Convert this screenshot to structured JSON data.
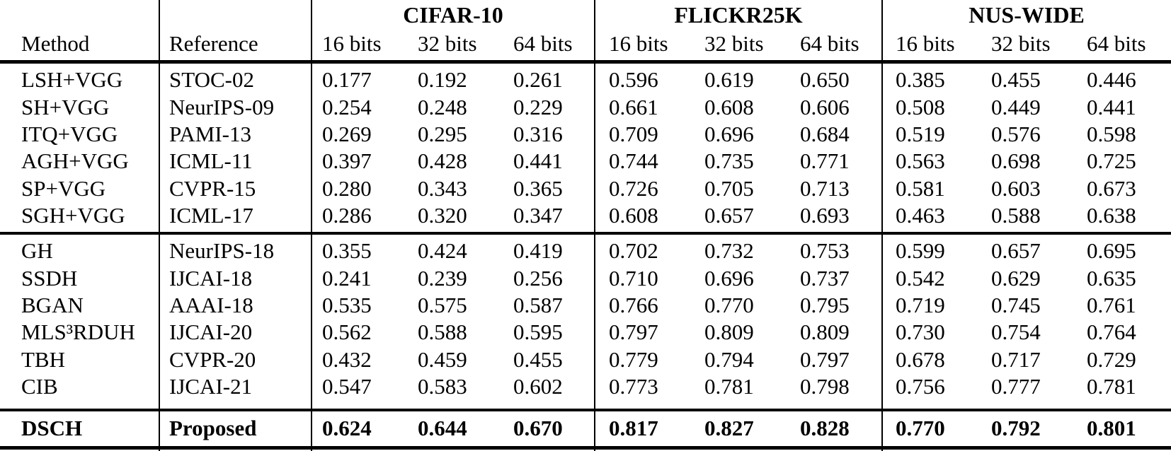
{
  "page": {
    "background_color": "#ffffff",
    "text_color": "#000000"
  },
  "table": {
    "header": {
      "method_label": "Method",
      "reference_label": "Reference",
      "groups": [
        {
          "label": "CIFAR-10",
          "bit_columns": [
            "16 bits",
            "32 bits",
            "64 bits"
          ]
        },
        {
          "label": "FLICKR25K",
          "bit_columns": [
            "16 bits",
            "32 bits",
            "64 bits"
          ]
        },
        {
          "label": "NUS-WIDE",
          "bit_columns": [
            "16 bits",
            "32 bits",
            "64 bits"
          ]
        }
      ]
    },
    "sections": [
      {
        "name": "shallow-methods",
        "bold": false,
        "rows": [
          {
            "method": "LSH+VGG",
            "reference": "STOC-02",
            "values": [
              "0.177",
              "0.192",
              "0.261",
              "0.596",
              "0.619",
              "0.650",
              "0.385",
              "0.455",
              "0.446"
            ]
          },
          {
            "method": "SH+VGG",
            "reference": "NeurIPS-09",
            "values": [
              "0.254",
              "0.248",
              "0.229",
              "0.661",
              "0.608",
              "0.606",
              "0.508",
              "0.449",
              "0.441"
            ]
          },
          {
            "method": "ITQ+VGG",
            "reference": "PAMI-13",
            "values": [
              "0.269",
              "0.295",
              "0.316",
              "0.709",
              "0.696",
              "0.684",
              "0.519",
              "0.576",
              "0.598"
            ]
          },
          {
            "method": "AGH+VGG",
            "reference": "ICML-11",
            "values": [
              "0.397",
              "0.428",
              "0.441",
              "0.744",
              "0.735",
              "0.771",
              "0.563",
              "0.698",
              "0.725"
            ]
          },
          {
            "method": "SP+VGG",
            "reference": "CVPR-15",
            "values": [
              "0.280",
              "0.343",
              "0.365",
              "0.726",
              "0.705",
              "0.713",
              "0.581",
              "0.603",
              "0.673"
            ]
          },
          {
            "method": "SGH+VGG",
            "reference": "ICML-17",
            "values": [
              "0.286",
              "0.320",
              "0.347",
              "0.608",
              "0.657",
              "0.693",
              "0.463",
              "0.588",
              "0.638"
            ]
          }
        ]
      },
      {
        "name": "deep-unsupervised-methods",
        "bold": false,
        "rows": [
          {
            "method": "GH",
            "reference": "NeurIPS-18",
            "values": [
              "0.355",
              "0.424",
              "0.419",
              "0.702",
              "0.732",
              "0.753",
              "0.599",
              "0.657",
              "0.695"
            ]
          },
          {
            "method": "SSDH",
            "reference": "IJCAI-18",
            "values": [
              "0.241",
              "0.239",
              "0.256",
              "0.710",
              "0.696",
              "0.737",
              "0.542",
              "0.629",
              "0.635"
            ]
          },
          {
            "method": "BGAN",
            "reference": "AAAI-18",
            "values": [
              "0.535",
              "0.575",
              "0.587",
              "0.766",
              "0.770",
              "0.795",
              "0.719",
              "0.745",
              "0.761"
            ]
          },
          {
            "method": "MLS³RDUH",
            "reference": "IJCAI-20",
            "values": [
              "0.562",
              "0.588",
              "0.595",
              "0.797",
              "0.809",
              "0.809",
              "0.730",
              "0.754",
              "0.764"
            ]
          },
          {
            "method": "TBH",
            "reference": "CVPR-20",
            "values": [
              "0.432",
              "0.459",
              "0.455",
              "0.779",
              "0.794",
              "0.797",
              "0.678",
              "0.717",
              "0.729"
            ]
          },
          {
            "method": "CIB",
            "reference": "IJCAI-21",
            "values": [
              "0.547",
              "0.583",
              "0.602",
              "0.773",
              "0.781",
              "0.798",
              "0.756",
              "0.777",
              "0.781"
            ]
          }
        ]
      },
      {
        "name": "proposed-method",
        "bold": true,
        "rows": [
          {
            "method": "DSCH",
            "reference": "Proposed",
            "values": [
              "0.624",
              "0.644",
              "0.670",
              "0.817",
              "0.827",
              "0.828",
              "0.770",
              "0.792",
              "0.801"
            ]
          }
        ]
      }
    ]
  }
}
